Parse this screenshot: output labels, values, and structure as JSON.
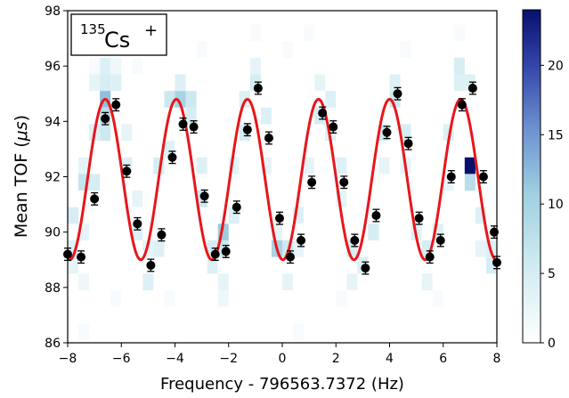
{
  "chart_data": {
    "type": "scatter",
    "annotation": {
      "mass": "135",
      "element": "Cs",
      "charge": "+"
    },
    "xlabel": "Frequency - 796563.7372 (Hz)",
    "ylabel_text": "Mean TOF (",
    "ylabel_unit": "μs",
    "ylabel_close": ")",
    "xlim": [
      -8,
      8
    ],
    "ylim": [
      86,
      98
    ],
    "x_ticks": [
      "−8",
      "−6",
      "−4",
      "−2",
      "0",
      "2",
      "4",
      "6",
      "8"
    ],
    "y_ticks": [
      "86",
      "88",
      "90",
      "92",
      "94",
      "96",
      "98"
    ],
    "colorbar": {
      "range": [
        0,
        24
      ],
      "ticks": [
        "0",
        "5",
        "10",
        "15",
        "20"
      ],
      "colormap": "white-lightblue-darkblue"
    },
    "fit_color": "#e8161b",
    "marker_color": "#000000",
    "fit": {
      "offset": 91.9,
      "amplitude": 2.9,
      "period": 2.65,
      "phase_x": -6.6
    },
    "points": [
      {
        "x": -8.0,
        "y": 89.2
      },
      {
        "x": -7.5,
        "y": 89.1
      },
      {
        "x": -7.0,
        "y": 91.2
      },
      {
        "x": -6.6,
        "y": 94.1
      },
      {
        "x": -6.2,
        "y": 94.6
      },
      {
        "x": -5.8,
        "y": 92.2
      },
      {
        "x": -5.4,
        "y": 90.3
      },
      {
        "x": -4.9,
        "y": 88.8
      },
      {
        "x": -4.5,
        "y": 89.9
      },
      {
        "x": -4.1,
        "y": 92.7
      },
      {
        "x": -3.7,
        "y": 93.9
      },
      {
        "x": -3.3,
        "y": 93.8
      },
      {
        "x": -2.9,
        "y": 91.3
      },
      {
        "x": -2.5,
        "y": 89.2
      },
      {
        "x": -2.1,
        "y": 89.3
      },
      {
        "x": -1.7,
        "y": 90.9
      },
      {
        "x": -1.3,
        "y": 93.7
      },
      {
        "x": -0.9,
        "y": 95.2
      },
      {
        "x": -0.5,
        "y": 93.4
      },
      {
        "x": -0.1,
        "y": 90.5
      },
      {
        "x": 0.3,
        "y": 89.1
      },
      {
        "x": 0.7,
        "y": 89.7
      },
      {
        "x": 1.1,
        "y": 91.8
      },
      {
        "x": 1.5,
        "y": 94.3
      },
      {
        "x": 1.9,
        "y": 93.8
      },
      {
        "x": 2.3,
        "y": 91.8
      },
      {
        "x": 2.7,
        "y": 89.7
      },
      {
        "x": 3.1,
        "y": 88.7
      },
      {
        "x": 3.5,
        "y": 90.6
      },
      {
        "x": 3.9,
        "y": 93.6
      },
      {
        "x": 4.3,
        "y": 95.0
      },
      {
        "x": 4.7,
        "y": 93.2
      },
      {
        "x": 5.1,
        "y": 90.5
      },
      {
        "x": 5.5,
        "y": 89.1
      },
      {
        "x": 5.9,
        "y": 89.7
      },
      {
        "x": 6.3,
        "y": 92.0
      },
      {
        "x": 6.7,
        "y": 94.6
      },
      {
        "x": 7.1,
        "y": 95.2
      },
      {
        "x": 7.5,
        "y": 92.0
      },
      {
        "x": 7.9,
        "y": 90.0
      },
      {
        "x": 8.0,
        "y": 88.9
      }
    ],
    "error": 0.22,
    "heatmap": {
      "x_bin": 0.4,
      "y_bin": 0.6,
      "cells": [
        [
          -7.0,
          96.0,
          1
        ],
        [
          -7.0,
          95.4,
          3
        ],
        [
          -6.6,
          95.4,
          5
        ],
        [
          -6.6,
          96.0,
          4
        ],
        [
          -6.2,
          95.4,
          4
        ],
        [
          -6.2,
          96.0,
          2
        ],
        [
          -7.0,
          93.6,
          4
        ],
        [
          -7.4,
          92.4,
          3
        ],
        [
          -6.6,
          93.6,
          6
        ],
        [
          -5.8,
          93.6,
          3
        ],
        [
          -5.8,
          92.4,
          4
        ],
        [
          -7.8,
          90.6,
          5
        ],
        [
          -7.4,
          91.8,
          7
        ],
        [
          -7.0,
          91.8,
          5
        ],
        [
          -7.8,
          89.4,
          4
        ],
        [
          -7.8,
          88.8,
          3
        ],
        [
          -7.4,
          88.2,
          2
        ],
        [
          -7.4,
          90.0,
          3
        ],
        [
          -6.6,
          94.8,
          12
        ],
        [
          -6.6,
          94.2,
          8
        ],
        [
          -5.4,
          91.2,
          3
        ],
        [
          -5.4,
          90.0,
          4
        ],
        [
          -5.0,
          89.4,
          3
        ],
        [
          -5.0,
          88.2,
          4
        ],
        [
          -4.6,
          89.4,
          4
        ],
        [
          -4.6,
          92.4,
          5
        ],
        [
          -4.2,
          93.0,
          4
        ],
        [
          -4.2,
          94.8,
          6
        ],
        [
          -3.8,
          94.8,
          10
        ],
        [
          -3.8,
          95.4,
          4
        ],
        [
          -3.4,
          94.8,
          6
        ],
        [
          -3.4,
          94.2,
          5
        ],
        [
          -3.0,
          92.4,
          4
        ],
        [
          -3.0,
          91.2,
          6
        ],
        [
          -2.6,
          89.4,
          5
        ],
        [
          -2.6,
          88.8,
          4
        ],
        [
          -2.2,
          89.4,
          6
        ],
        [
          -2.2,
          90.0,
          11
        ],
        [
          -2.2,
          88.2,
          3
        ],
        [
          -1.8,
          90.6,
          4
        ],
        [
          -1.8,
          92.4,
          3
        ],
        [
          -1.4,
          93.6,
          5
        ],
        [
          -1.4,
          94.8,
          4
        ],
        [
          -1.0,
          95.4,
          5
        ],
        [
          -1.0,
          96.0,
          3
        ],
        [
          -0.6,
          94.2,
          4
        ],
        [
          -0.6,
          92.4,
          3
        ],
        [
          -0.2,
          90.0,
          3
        ],
        [
          -0.2,
          89.4,
          10
        ],
        [
          0.2,
          89.4,
          6
        ],
        [
          0.2,
          88.2,
          3
        ],
        [
          0.6,
          89.4,
          3
        ],
        [
          0.6,
          90.6,
          4
        ],
        [
          1.0,
          92.4,
          3
        ],
        [
          1.4,
          94.2,
          5
        ],
        [
          1.4,
          95.4,
          3
        ],
        [
          1.8,
          94.8,
          4
        ],
        [
          1.8,
          93.6,
          4
        ],
        [
          2.2,
          92.4,
          4
        ],
        [
          2.2,
          91.2,
          3
        ],
        [
          2.6,
          89.4,
          5
        ],
        [
          2.6,
          88.2,
          3
        ],
        [
          3.0,
          88.8,
          4
        ],
        [
          3.4,
          90.0,
          5
        ],
        [
          3.8,
          92.4,
          3
        ],
        [
          3.8,
          93.6,
          6
        ],
        [
          4.2,
          95.4,
          4
        ],
        [
          4.2,
          94.8,
          6
        ],
        [
          4.6,
          93.6,
          5
        ],
        [
          4.6,
          92.4,
          3
        ],
        [
          5.0,
          90.0,
          4
        ],
        [
          5.4,
          89.4,
          5
        ],
        [
          5.4,
          88.2,
          3
        ],
        [
          5.8,
          90.0,
          4
        ],
        [
          6.2,
          91.8,
          3
        ],
        [
          6.2,
          93.6,
          4
        ],
        [
          6.6,
          95.4,
          4
        ],
        [
          6.6,
          96.0,
          5
        ],
        [
          7.0,
          95.4,
          4
        ],
        [
          7.0,
          92.4,
          24
        ],
        [
          7.0,
          91.8,
          8
        ],
        [
          7.4,
          90.6,
          4
        ],
        [
          7.4,
          89.4,
          3
        ],
        [
          7.8,
          88.8,
          5
        ],
        [
          7.8,
          89.4,
          4
        ],
        [
          -1.0,
          97.2,
          1
        ],
        [
          0.2,
          96.6,
          1
        ],
        [
          1.0,
          97.2,
          1
        ],
        [
          4.6,
          96.6,
          1
        ],
        [
          -5.4,
          96.0,
          1
        ],
        [
          -3.0,
          96.6,
          1
        ],
        [
          6.6,
          97.2,
          1
        ],
        [
          -6.2,
          87.6,
          1
        ],
        [
          -2.2,
          87.6,
          2
        ],
        [
          2.2,
          87.6,
          1
        ],
        [
          5.8,
          87.6,
          1
        ],
        [
          -4.2,
          87.6,
          1
        ],
        [
          0.6,
          86.4,
          1
        ],
        [
          -7.4,
          86.4,
          1
        ]
      ]
    }
  }
}
